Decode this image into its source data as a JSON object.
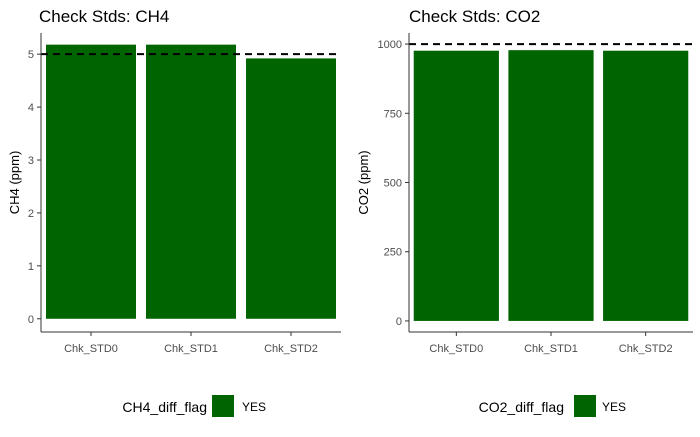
{
  "colors": {
    "bar": "#006400",
    "axis": "#333333",
    "tick_text": "#4d4d4d",
    "reference_line": "#000000"
  },
  "chart_data": [
    {
      "type": "bar",
      "title": "Check Stds: CH4",
      "xlabel": "",
      "ylabel": "CH4  (ppm)",
      "categories": [
        "Chk_STD0",
        "Chk_STD1",
        "Chk_STD2"
      ],
      "values": [
        5.18,
        5.18,
        4.92
      ],
      "ylim": [
        -0.25,
        5.4
      ],
      "yticks": [
        0,
        1,
        2,
        3,
        4,
        5
      ],
      "ytick_labels": [
        "0",
        "1",
        "2",
        "3",
        "4",
        "5"
      ],
      "reference_line": {
        "value": 5,
        "style": "dashed"
      },
      "grid": false,
      "legend": {
        "title": "CH4_diff_flag",
        "entries": [
          "YES"
        ],
        "position": "bottom"
      }
    },
    {
      "type": "bar",
      "title": "Check Stds: CO2",
      "xlabel": "",
      "ylabel": "CO2  (ppm)",
      "categories": [
        "Chk_STD0",
        "Chk_STD1",
        "Chk_STD2"
      ],
      "values": [
        976,
        978,
        976
      ],
      "ylim": [
        -40,
        1040
      ],
      "yticks": [
        0,
        250,
        500,
        750,
        1000
      ],
      "ytick_labels": [
        "0",
        "250",
        "500",
        "750",
        "1000"
      ],
      "reference_line": {
        "value": 1000,
        "style": "dashed"
      },
      "grid": false,
      "legend": {
        "title": "CO2_diff_flag",
        "entries": [
          "YES"
        ],
        "position": "bottom"
      }
    }
  ]
}
